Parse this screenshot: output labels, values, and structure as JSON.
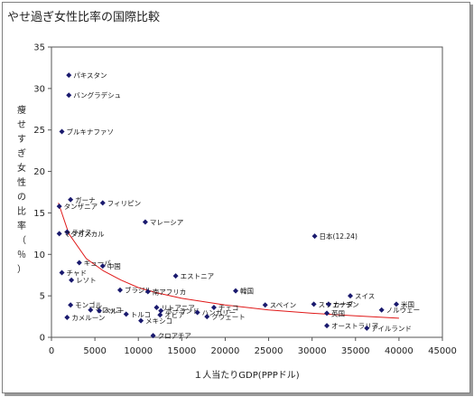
{
  "chart_data": {
    "type": "scatter",
    "title": "やせ過ぎ女性比率の国際比較",
    "xlabel": "１人当たりGDP(PPPドル)",
    "ylabel": "痩せすぎ女性の比率（％）",
    "xlim": [
      0,
      45000
    ],
    "ylim": [
      0,
      35
    ],
    "x_ticks": [
      0,
      5000,
      10000,
      15000,
      20000,
      25000,
      30000,
      35000,
      40000,
      45000
    ],
    "y_ticks": [
      0,
      5,
      10,
      15,
      20,
      25,
      30,
      35
    ],
    "grid": false,
    "marker_color": "#1a1a6e",
    "trend_color": "#e01818",
    "trendline": {
      "type": "curve",
      "points": [
        [
          800,
          16.2
        ],
        [
          2000,
          12.5
        ],
        [
          4000,
          9.5
        ],
        [
          6000,
          8.0
        ],
        [
          8000,
          6.9
        ],
        [
          10000,
          6.0
        ],
        [
          12000,
          5.4
        ],
        [
          15000,
          4.7
        ],
        [
          20000,
          3.9
        ],
        [
          25000,
          3.3
        ],
        [
          30000,
          2.9
        ],
        [
          35000,
          2.6
        ],
        [
          40000,
          2.3
        ]
      ]
    },
    "points": [
      {
        "label": "パキスタン",
        "x": 2000,
        "y": 31.6
      },
      {
        "label": "バングラデシュ",
        "x": 2000,
        "y": 29.2
      },
      {
        "label": "ブルキナファソ",
        "x": 1200,
        "y": 24.8
      },
      {
        "label": "ガーナ",
        "x": 2200,
        "y": 16.6
      },
      {
        "label": "フィリピン",
        "x": 5900,
        "y": 16.2
      },
      {
        "label": "タンザニア",
        "x": 900,
        "y": 15.8
      },
      {
        "label": "マレーシア",
        "x": 10800,
        "y": 13.9
      },
      {
        "label": "ラオス",
        "x": 1800,
        "y": 12.7
      },
      {
        "label": "マダガスカル",
        "x": 900,
        "y": 12.5
      },
      {
        "label": "日本(12.24)",
        "x": 30300,
        "y": 12.2
      },
      {
        "label": "キューバ",
        "x": 3200,
        "y": 9.0
      },
      {
        "label": "中国",
        "x": 5900,
        "y": 8.6
      },
      {
        "label": "チャド",
        "x": 1200,
        "y": 7.8
      },
      {
        "label": "レソト",
        "x": 2300,
        "y": 6.9
      },
      {
        "label": "エストニア",
        "x": 14300,
        "y": 7.4
      },
      {
        "label": "ブラジル",
        "x": 7900,
        "y": 5.7
      },
      {
        "label": "南アフリカ",
        "x": 11100,
        "y": 5.5
      },
      {
        "label": "韓国",
        "x": 21200,
        "y": 5.6
      },
      {
        "label": "スイス",
        "x": 34400,
        "y": 5.0
      },
      {
        "label": "スウェーデン",
        "x": 30200,
        "y": 4.0
      },
      {
        "label": "カナダ",
        "x": 31900,
        "y": 4.0
      },
      {
        "label": "米国",
        "x": 39700,
        "y": 4.0
      },
      {
        "label": "モンゴル",
        "x": 2200,
        "y": 3.9
      },
      {
        "label": "リトアニア",
        "x": 12100,
        "y": 3.6
      },
      {
        "label": "ポーランド",
        "x": 12600,
        "y": 3.2
      },
      {
        "label": "チェコ",
        "x": 18700,
        "y": 3.6
      },
      {
        "label": "スペイン",
        "x": 24600,
        "y": 3.9
      },
      {
        "label": "英国",
        "x": 31700,
        "y": 2.9
      },
      {
        "label": "ノルウェー",
        "x": 38000,
        "y": 3.3
      },
      {
        "label": "モロッコ",
        "x": 4500,
        "y": 3.3
      },
      {
        "label": "トルコ",
        "x": 8600,
        "y": 2.8
      },
      {
        "label": "ペルー",
        "x": 5500,
        "y": 3.2
      },
      {
        "label": "オビア",
        "x": 12500,
        "y": 2.7
      },
      {
        "label": "ハンガリー",
        "x": 16800,
        "y": 3.0
      },
      {
        "label": "クウェート",
        "x": 17900,
        "y": 2.5
      },
      {
        "label": "カメルーン",
        "x": 1800,
        "y": 2.4
      },
      {
        "label": "メキシコ",
        "x": 10300,
        "y": 2.0
      },
      {
        "label": "オーストラリア",
        "x": 31700,
        "y": 1.4
      },
      {
        "label": "アイルランド",
        "x": 36300,
        "y": 1.1
      },
      {
        "label": "クロアチア",
        "x": 11700,
        "y": 0.2
      }
    ]
  }
}
